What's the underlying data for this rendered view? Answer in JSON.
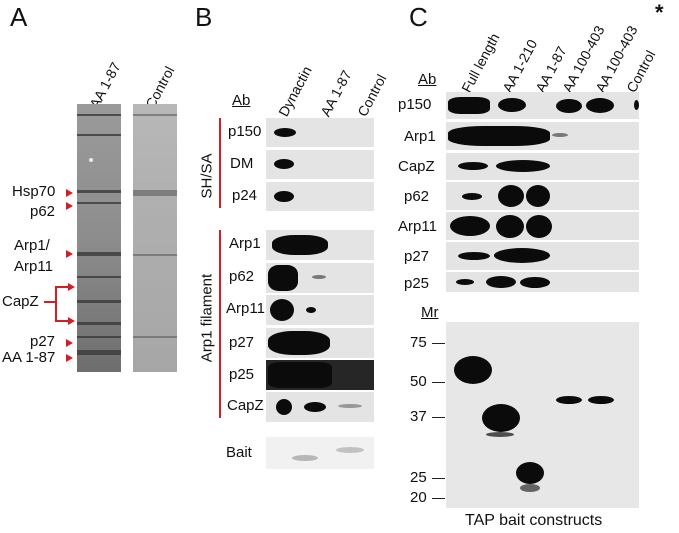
{
  "panels": {
    "a": "A",
    "b": "B",
    "c": "C"
  },
  "panel_a": {
    "lanes": [
      "AA 1-87",
      "Control"
    ],
    "markers": {
      "hsp70": "Hsp70",
      "p62": "p62",
      "arp1_line1": "Arp1/",
      "arp1_line2": "Arp11",
      "capz": "CapZ",
      "p27": "p27",
      "aa187": "AA 1-87"
    }
  },
  "panel_b": {
    "ab_heading": "Ab",
    "lanes": [
      "Dynactin",
      "AA 1-87",
      "Control"
    ],
    "group_shsa": "SH/SA",
    "group_arp1": "Arp1 filament",
    "rows_shsa": [
      "p150",
      "DM",
      "p24"
    ],
    "rows_arp1": [
      "Arp1",
      "p62",
      "Arp11",
      "p27",
      "p25",
      "CapZ"
    ],
    "bait": "Bait"
  },
  "panel_c": {
    "ab_heading": "Ab",
    "lanes": [
      "Full length",
      "AA 1-210",
      "AA 1-87",
      "AA 100-403",
      "AA 100-403",
      "Control"
    ],
    "asterisk": "*",
    "rows": [
      "p150",
      "Arp1",
      "CapZ",
      "p62",
      "Arp11",
      "p27",
      "p25"
    ],
    "mr_heading": "Mr",
    "mr_ticks": [
      "75",
      "50",
      "37",
      "25",
      "20"
    ],
    "caption": "TAP bait constructs"
  },
  "colors": {
    "arrow": "#d01f26",
    "band": "#0b0b0b",
    "blot_background": "#e6e6e6"
  }
}
